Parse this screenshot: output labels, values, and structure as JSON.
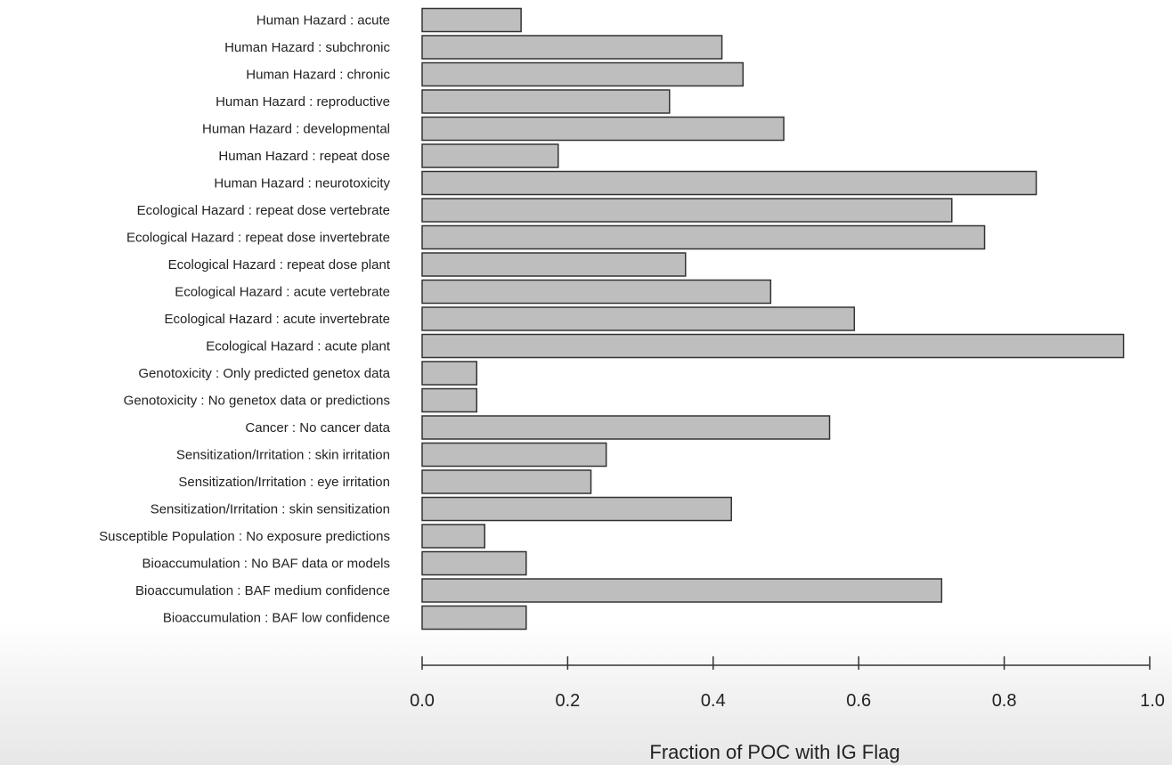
{
  "chart_data": {
    "type": "bar",
    "orientation": "horizontal",
    "title": "",
    "xlabel": "Fraction of POC with IG Flag",
    "ylabel": "",
    "xlim": [
      0.0,
      1.0
    ],
    "x_ticks": [
      "0.0",
      "0.2",
      "0.4",
      "0.6",
      "0.8",
      "1.0"
    ],
    "grid": false,
    "colors": {
      "bar_fill": "#bebebe",
      "bar_stroke": "#333333",
      "text": "#222222"
    },
    "categories": [
      "Human Hazard : acute",
      "Human Hazard : subchronic",
      "Human Hazard : chronic",
      "Human Hazard : reproductive",
      "Human Hazard : developmental",
      "Human Hazard : repeat dose",
      "Human Hazard : neurotoxicity",
      "Ecological Hazard : repeat dose vertebrate",
      "Ecological Hazard : repeat dose invertebrate",
      "Ecological Hazard : repeat dose plant",
      "Ecological Hazard : acute vertebrate",
      "Ecological Hazard : acute invertebrate",
      "Ecological Hazard : acute plant",
      "Genotoxicity : Only predicted genetox data",
      "Genotoxicity : No genetox data or predictions",
      "Cancer : No cancer data",
      "Sensitization/Irritation : skin irritation",
      "Sensitization/Irritation : eye irritation",
      "Sensitization/Irritation : skin sensitization",
      "Susceptible Population : No exposure predictions",
      "Bioaccumulation : No BAF data or models",
      "Bioaccumulation : BAF medium confidence",
      "Bioaccumulation : BAF low confidence"
    ],
    "values": [
      0.136,
      0.412,
      0.441,
      0.34,
      0.497,
      0.187,
      0.844,
      0.728,
      0.773,
      0.362,
      0.479,
      0.594,
      0.964,
      0.075,
      0.075,
      0.56,
      0.253,
      0.232,
      0.425,
      0.086,
      0.143,
      0.714,
      0.143
    ]
  }
}
